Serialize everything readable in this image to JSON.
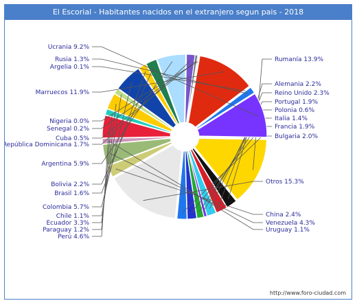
{
  "chart_data": {
    "type": "pie",
    "title": "El Escorial - Habitantes nacidos en el extranjero segun pais - 2018",
    "value_suffix": "%",
    "slices": [
      {
        "label": "Rumanía",
        "value": 13.9,
        "color": "#ffd700"
      },
      {
        "label": "Alemania",
        "value": 2.2,
        "color": "#111111"
      },
      {
        "label": "Reino Unido",
        "value": 2.3,
        "color": "#d71f2a"
      },
      {
        "label": "Portugal",
        "value": 1.9,
        "color": "#33ccee"
      },
      {
        "label": "Polonia",
        "value": 0.6,
        "color": "#7a33ee"
      },
      {
        "label": "Italia",
        "value": 1.4,
        "color": "#22aa33"
      },
      {
        "label": "Francia",
        "value": 1.9,
        "color": "#2233cc"
      },
      {
        "label": "Bulgaria",
        "value": 2.0,
        "color": "#1f77ee"
      },
      {
        "label": "Otros",
        "value": 15.3,
        "color": "#e8e8e8"
      },
      {
        "label": "China",
        "value": 2.4,
        "color": "#cccc77"
      },
      {
        "label": "Venezuela",
        "value": 4.3,
        "color": "#99bb77"
      },
      {
        "label": "Uruguay",
        "value": 1.1,
        "color": "#cc99bb"
      },
      {
        "label": "Perú",
        "value": 4.6,
        "color": "#e8203a"
      },
      {
        "label": "Paraguay",
        "value": 1.2,
        "color": "#22ccbb"
      },
      {
        "label": "Ecuador",
        "value": 3.3,
        "color": "#ffcc00"
      },
      {
        "label": "Chile",
        "value": 1.1,
        "color": "#bbdd88"
      },
      {
        "label": "Colombia",
        "value": 5.7,
        "color": "#1144aa"
      },
      {
        "label": "Brasil",
        "value": 1.6,
        "color": "#ffcc00"
      },
      {
        "label": "Bolivia",
        "value": 2.2,
        "color": "#1f7f4f"
      },
      {
        "label": "Argentina",
        "value": 5.9,
        "color": "#aaddff"
      },
      {
        "label": "República Dominicana",
        "value": 1.7,
        "color": "#7755cc"
      },
      {
        "label": "Cuba",
        "value": 0.5,
        "color": "#777777"
      },
      {
        "label": "Senegal",
        "value": 0.2,
        "color": "#bbbbbb"
      },
      {
        "label": "Nigeria",
        "value": 0.0,
        "color": "#999999"
      },
      {
        "label": "Marruecos",
        "value": 11.9,
        "color": "#e02a10"
      },
      {
        "label": "Argelia",
        "value": 0.1,
        "color": "#cccccc"
      },
      {
        "label": "Rusia",
        "value": 1.3,
        "color": "#1f77ee"
      },
      {
        "label": "Ucrania",
        "value": 9.2,
        "color": "#7733ff"
      }
    ]
  },
  "footer_url": "http://www.foro-ciudad.com"
}
